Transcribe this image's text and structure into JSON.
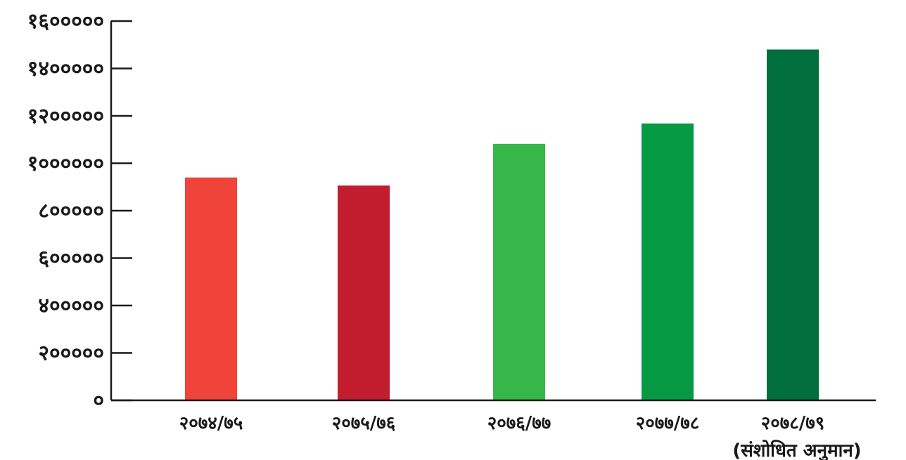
{
  "chart_data": {
    "type": "bar",
    "categories": [
      "२०७४/७५",
      "२०७५/७६",
      "२०७६/७७",
      "२०७७/७८",
      "२०७८/७९"
    ],
    "category_sublabels": [
      "",
      "",
      "",
      "",
      "(संशोधित अनुमान)"
    ],
    "values": [
      940000,
      906000,
      1082000,
      1168000,
      1480000
    ],
    "colors": [
      "#f0433a",
      "#c21d2f",
      "#37b74a",
      "#069a44",
      "#006f3c"
    ],
    "y_ticks": [
      0,
      200000,
      400000,
      600000,
      800000,
      1000000,
      1200000,
      1400000,
      1600000
    ],
    "y_tick_labels": [
      "०",
      "२०००००",
      "४०००००",
      "६०००००",
      "८०००००",
      "१००००००",
      "१२०००००",
      "१४०००००",
      "१६०००००"
    ],
    "ylim": [
      0,
      1600000
    ],
    "title": "",
    "xlabel": "",
    "ylabel": "",
    "grid": false,
    "legend": "none"
  }
}
